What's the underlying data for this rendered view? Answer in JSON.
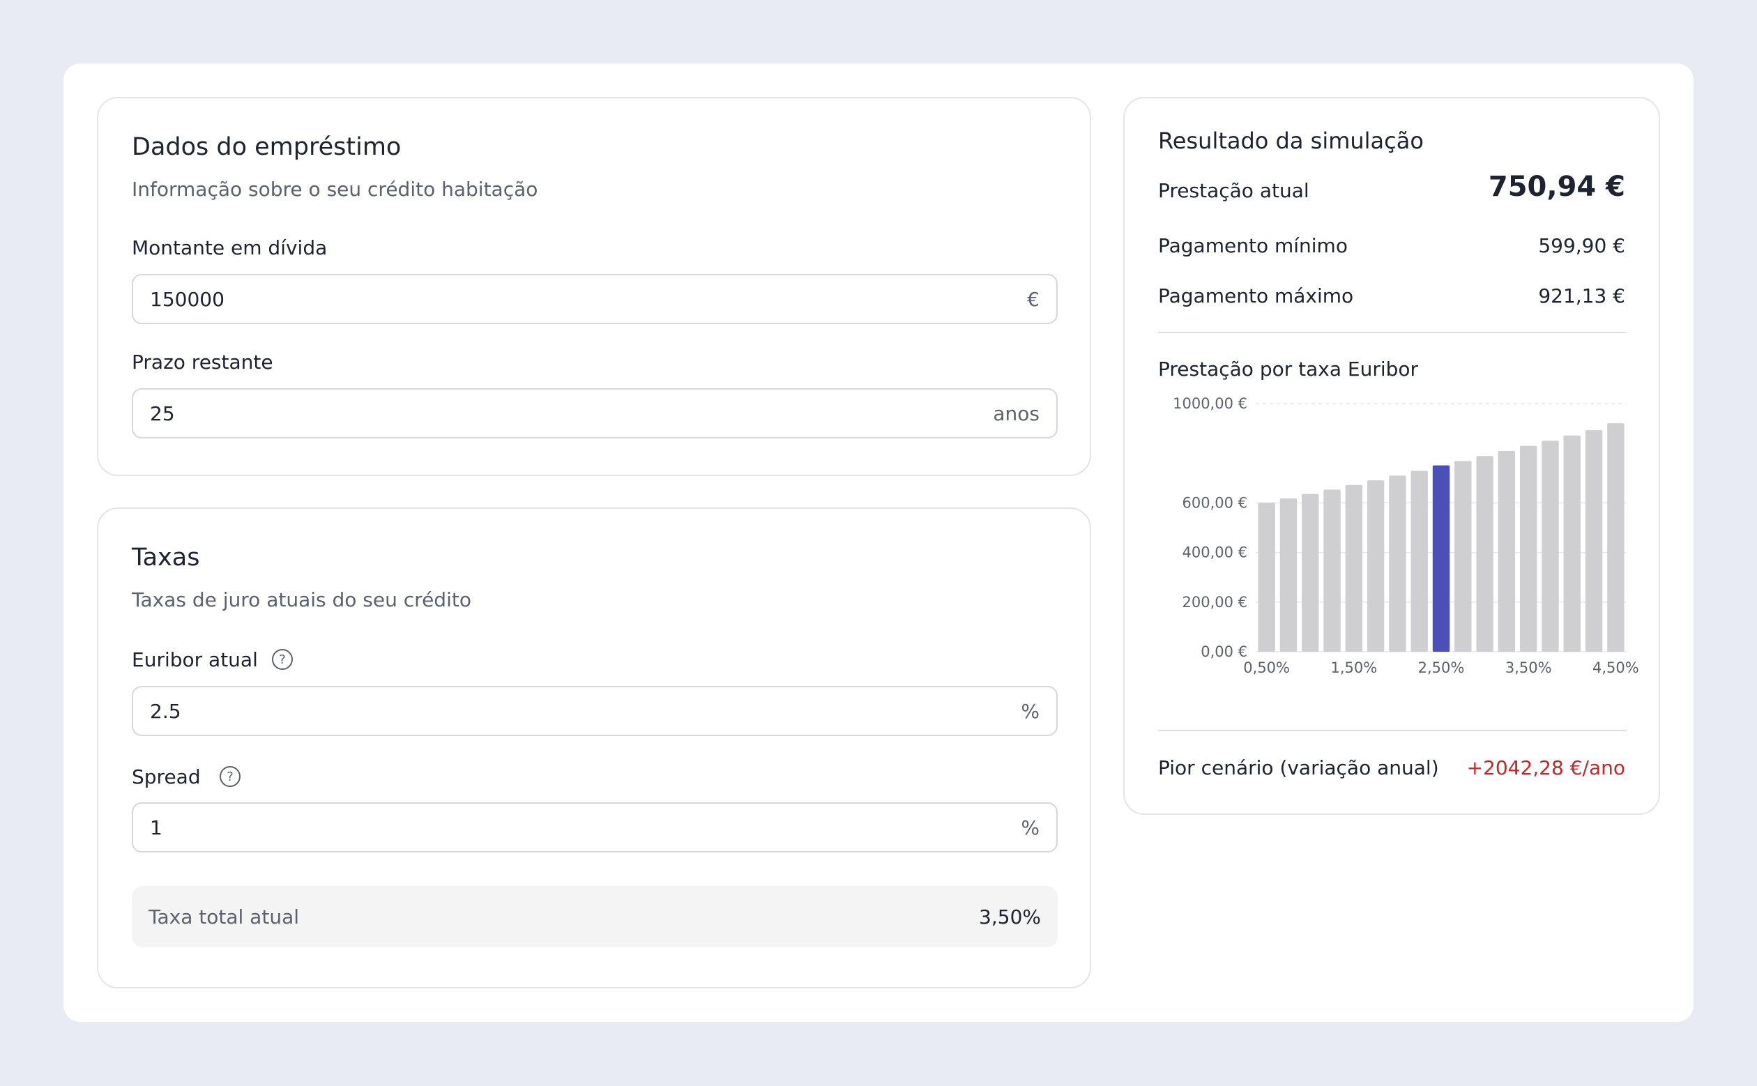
{
  "loan": {
    "title": "Dados do empréstimo",
    "subtitle": "Informação sobre o seu crédito habitação",
    "amount_label": "Montante em dívida",
    "amount_value": "150000",
    "amount_suffix": "€",
    "term_label": "Prazo restante",
    "term_value": "25",
    "term_suffix": "anos"
  },
  "rates": {
    "title": "Taxas",
    "subtitle": "Taxas de juro atuais do seu crédito",
    "euribor_label": "Euribor atual",
    "euribor_value": "2.5",
    "euribor_suffix": "%",
    "spread_label": "Spread",
    "spread_value": "1",
    "spread_suffix": "%",
    "help_glyph": "?",
    "total_label": "Taxa total atual",
    "total_value": "3,50%"
  },
  "result": {
    "title": "Resultado da simulação",
    "current_label": "Prestação atual",
    "current_value": "750,94 €",
    "min_label": "Pagamento mínimo",
    "min_value": "599,90 €",
    "max_label": "Pagamento máximo",
    "max_value": "921,13 €",
    "chart_title": "Prestação por taxa Euribor",
    "worst_label": "Pior cenário (variação anual)",
    "worst_value": "+2042,28 €/ano"
  },
  "colors": {
    "bar_default": "#cfcfd1",
    "bar_highlight": "#4b50b8",
    "worst_value": "#c62828"
  },
  "chart_data": {
    "type": "bar",
    "title": "Prestação por taxa Euribor",
    "x": [
      0.5,
      0.75,
      1.0,
      1.25,
      1.5,
      1.75,
      2.0,
      2.25,
      2.5,
      2.75,
      3.0,
      3.25,
      3.5,
      3.75,
      4.0,
      4.25,
      4.5
    ],
    "values": [
      599.9,
      617.5,
      635.4,
      653.6,
      672.0,
      690.7,
      709.7,
      729.0,
      750.94,
      768.5,
      788.6,
      809.0,
      829.6,
      850.5,
      871.6,
      893.0,
      921.13
    ],
    "highlight_index": 8,
    "y_ticks": [
      "0,00 €",
      "200,00 €",
      "400,00 €",
      "600,00 €",
      "1000,00 €"
    ],
    "x_ticks": [
      "0,50%",
      "1,50%",
      "2,50%",
      "3,50%",
      "4,50%"
    ],
    "ylim": [
      0,
      1000
    ],
    "grid": true
  }
}
